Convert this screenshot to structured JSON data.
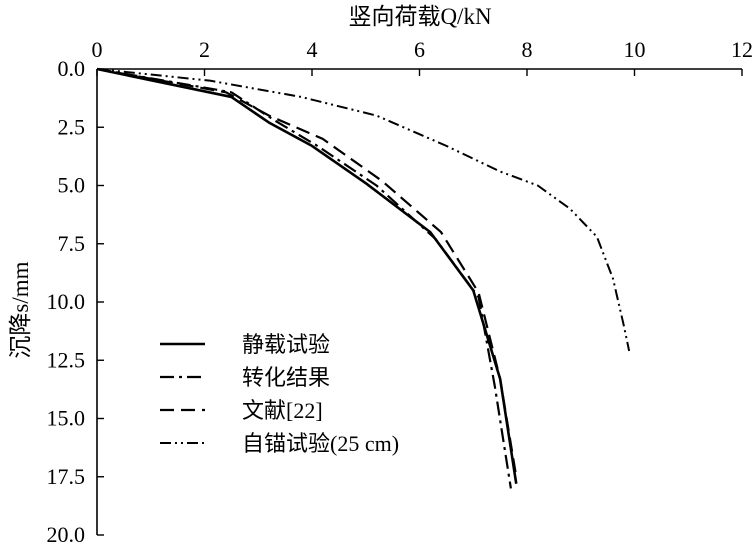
{
  "chart_data": {
    "type": "line",
    "title": "",
    "xlabel": "竖向荷载Q/kN",
    "ylabel": "沉降s/mm",
    "x_axis_position": "top",
    "y_inverted": true,
    "xlim": [
      0,
      12
    ],
    "ylim": [
      0,
      20
    ],
    "x_ticks": [
      "0",
      "2",
      "4",
      "6",
      "8",
      "10",
      "12"
    ],
    "y_ticks": [
      "0.0",
      "2.5",
      "5.0",
      "7.5",
      "10.0",
      "12.5",
      "15.0",
      "17.5",
      "20.0"
    ],
    "grid": false,
    "legend_position": "bottom-left",
    "series": [
      {
        "name": "静载试验",
        "style": "solid",
        "color": "#000000",
        "points": [
          [
            0,
            0
          ],
          [
            2.5,
            1.2
          ],
          [
            3.2,
            2.3
          ],
          [
            4.0,
            3.3
          ],
          [
            5.0,
            4.9
          ],
          [
            6.2,
            7.0
          ],
          [
            7.0,
            9.5
          ],
          [
            7.5,
            13.3
          ],
          [
            7.8,
            17.8
          ]
        ]
      },
      {
        "name": "转化结果",
        "style": "dashdot",
        "color": "#000000",
        "points": [
          [
            0,
            0
          ],
          [
            2.5,
            1.0
          ],
          [
            3.3,
            2.2
          ],
          [
            4.1,
            3.3
          ],
          [
            5.2,
            5.0
          ],
          [
            6.3,
            7.3
          ],
          [
            7.1,
            9.8
          ],
          [
            7.4,
            13.6
          ],
          [
            7.7,
            18.0
          ]
        ]
      },
      {
        "name": "文献[22]",
        "style": "dashed",
        "color": "#000000",
        "points": [
          [
            0,
            0
          ],
          [
            2.4,
            1.0
          ],
          [
            3.2,
            2.0
          ],
          [
            4.2,
            3.0
          ],
          [
            5.3,
            4.8
          ],
          [
            6.4,
            7.0
          ],
          [
            7.1,
            9.6
          ],
          [
            7.5,
            13.3
          ],
          [
            7.8,
            17.5
          ]
        ]
      },
      {
        "name": "自锚试验(25 cm)",
        "style": "dashdotdot",
        "color": "#000000",
        "points": [
          [
            0,
            0
          ],
          [
            2.1,
            0.5
          ],
          [
            3.8,
            1.2
          ],
          [
            5.2,
            2.0
          ],
          [
            6.5,
            3.3
          ],
          [
            7.5,
            4.4
          ],
          [
            8.2,
            5.0
          ],
          [
            8.8,
            6.0
          ],
          [
            9.3,
            7.2
          ],
          [
            9.6,
            9.0
          ],
          [
            9.8,
            11.0
          ],
          [
            9.9,
            12.1
          ]
        ]
      }
    ]
  }
}
